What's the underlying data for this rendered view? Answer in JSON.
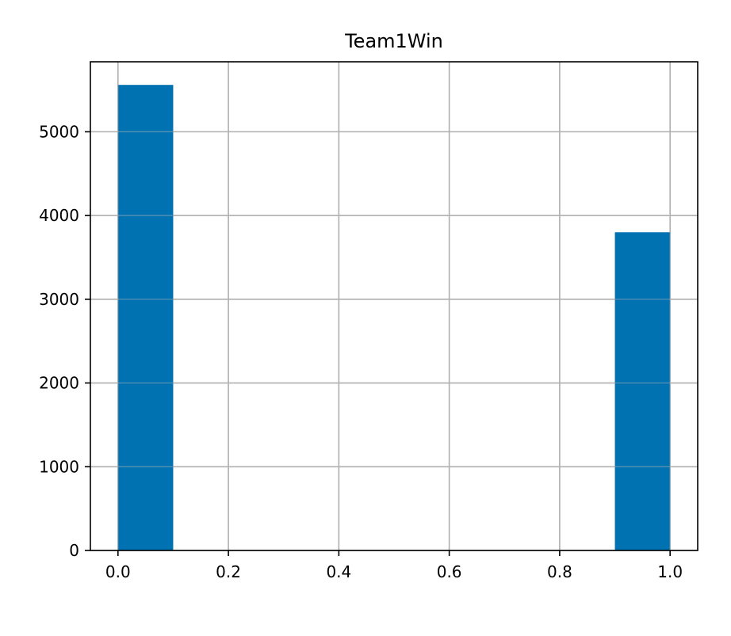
{
  "chart_data": {
    "type": "bar",
    "subtype": "histogram",
    "title": "Team1Win",
    "xlabel": "",
    "ylabel": "",
    "xlim": [
      -0.05,
      1.05
    ],
    "ylim": [
      0,
      5836
    ],
    "grid": true,
    "x_ticks": [
      0.0,
      0.2,
      0.4,
      0.6,
      0.8,
      1.0
    ],
    "x_tick_labels": [
      "0.0",
      "0.2",
      "0.4",
      "0.6",
      "0.8",
      "1.0"
    ],
    "y_ticks": [
      0,
      1000,
      2000,
      3000,
      4000,
      5000
    ],
    "y_tick_labels": [
      "0",
      "1000",
      "2000",
      "3000",
      "4000",
      "5000"
    ],
    "bins": [
      {
        "x0": 0.0,
        "x1": 0.1,
        "count": 5560
      },
      {
        "x0": 0.1,
        "x1": 0.2,
        "count": 0
      },
      {
        "x0": 0.2,
        "x1": 0.3,
        "count": 0
      },
      {
        "x0": 0.3,
        "x1": 0.4,
        "count": 0
      },
      {
        "x0": 0.4,
        "x1": 0.5,
        "count": 0
      },
      {
        "x0": 0.5,
        "x1": 0.6,
        "count": 0
      },
      {
        "x0": 0.6,
        "x1": 0.7,
        "count": 0
      },
      {
        "x0": 0.7,
        "x1": 0.8,
        "count": 0
      },
      {
        "x0": 0.8,
        "x1": 0.9,
        "count": 0
      },
      {
        "x0": 0.9,
        "x1": 1.0,
        "count": 3800
      }
    ],
    "colors": {
      "bar": "#0072b2",
      "grid": "#b0b0b0",
      "axis": "#000000"
    }
  }
}
